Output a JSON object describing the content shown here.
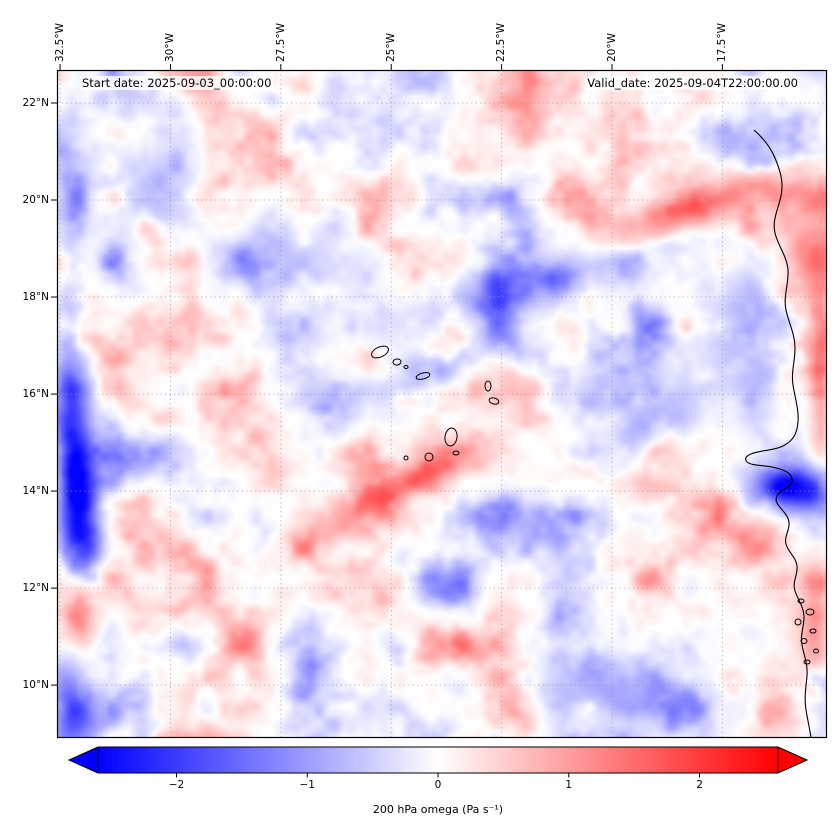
{
  "chart_data": {
    "type": "heatmap",
    "annotations": {
      "start": "Start date: 2025-09-03_00:00:00",
      "valid": "Valid_date: 2025-09-04T22:00:00.00"
    },
    "x_axis": {
      "position": "top",
      "rotation": 90,
      "tick_labels": [
        "32.5°W",
        "30°W",
        "27.5°W",
        "25°W",
        "22.5°W",
        "20°W",
        "17.5°W"
      ],
      "tick_values": [
        -32.5,
        -30,
        -27.5,
        -25,
        -22.5,
        -20,
        -17.5
      ],
      "extent": [
        -32.57,
        -15.13
      ]
    },
    "y_axis": {
      "position": "left",
      "tick_labels": [
        "22°N",
        "20°N",
        "18°N",
        "16°N",
        "14°N",
        "12°N",
        "10°N"
      ],
      "tick_values": [
        22,
        20,
        18,
        16,
        14,
        12,
        10
      ],
      "extent": [
        8.91,
        22.68
      ]
    },
    "colorbar": {
      "label": "200 hPa omega (Pa s⁻¹)",
      "orientation": "horizontal",
      "extend": "both",
      "tick_labels": [
        "−2",
        "−1",
        "0",
        "1",
        "2"
      ],
      "tick_values": [
        -2,
        -1,
        0,
        1,
        2
      ],
      "vmin": -2.6,
      "vmax": 2.6,
      "colormap": "bwr",
      "colors": {
        "low": "#0000ff",
        "mid": "#ffffff",
        "high": "#ff0000"
      }
    },
    "field": {
      "variable": "omega",
      "level": "200 hPa",
      "units": "Pa s⁻¹",
      "value_range_displayed": [
        -2.6,
        2.6
      ]
    },
    "grid": true,
    "map_features": [
      "west-africa-coastline",
      "cape-verde-islands",
      "bijagos-islands"
    ]
  }
}
